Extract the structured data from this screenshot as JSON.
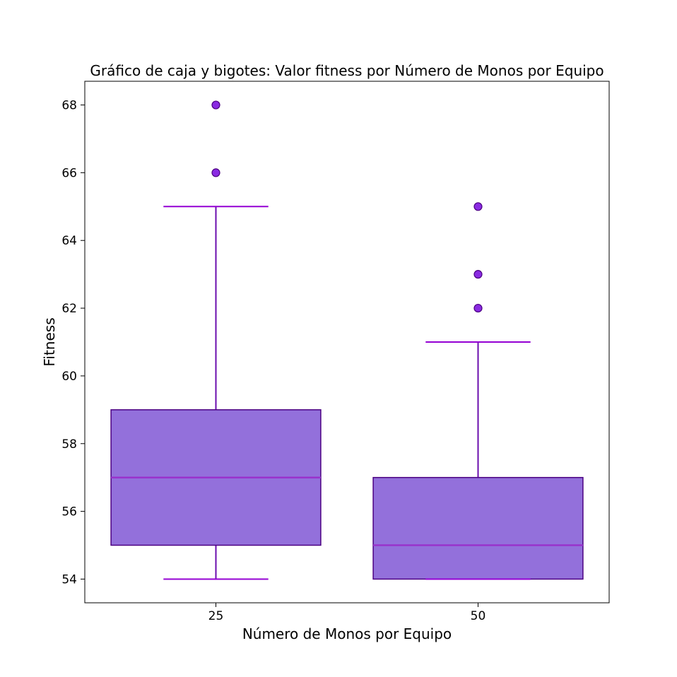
{
  "chart_data": {
    "type": "box",
    "title": "Gráfico de caja y bigotes: Valor fitness por Número de Monos por Equipo",
    "xlabel": "Número de Monos por Equipo",
    "ylabel": "Fitness",
    "ylim": [
      53.3,
      68.7
    ],
    "yticks": [
      54,
      56,
      58,
      60,
      62,
      64,
      66,
      68
    ],
    "grid": false,
    "colors": {
      "box_fill": "#9370DB",
      "box_edge": "#4B0082",
      "median": "#9932CC",
      "whisker": "#6A0DAD",
      "cap": "#9400D3",
      "flier_fill": "#8A2BE2",
      "flier_edge": "#4B0082"
    },
    "categories": [
      "25",
      "50"
    ],
    "boxes": [
      {
        "category": "25",
        "whislo": 54,
        "q1": 55,
        "median": 57,
        "q3": 59,
        "whishi": 65,
        "fliers": [
          66,
          68
        ]
      },
      {
        "category": "50",
        "whislo": 54,
        "q1": 54,
        "median": 55,
        "q3": 57,
        "whishi": 61,
        "fliers": [
          62,
          63,
          65
        ]
      }
    ]
  }
}
